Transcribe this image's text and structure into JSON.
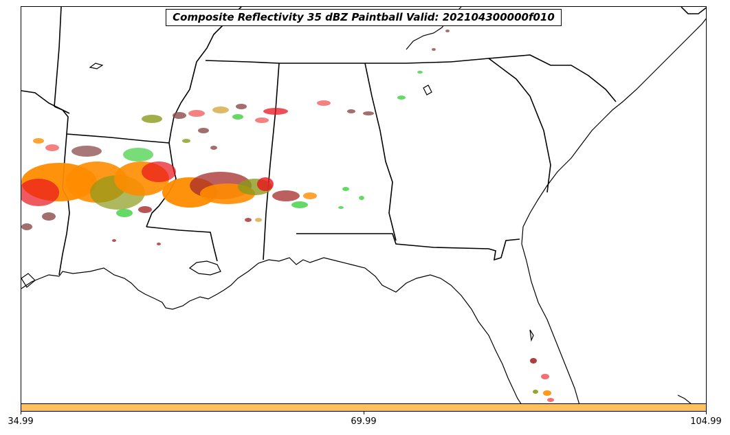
{
  "title": "Composite Reflectivity 35 dBZ Paintball Valid: 202104300000f010",
  "colorbar": {
    "color": "#ffc060",
    "ticks": [
      "34.99",
      "69.99",
      "104.99"
    ]
  },
  "colors": {
    "orange": "#ff8c00",
    "red": "#e8141e",
    "dark_red": "#a52a2a",
    "brown": "#8b4a4a",
    "green": "#3fcf3f",
    "olive": "#8b9a1a",
    "light_red": "#f26060",
    "tan": "#d8a840"
  }
}
